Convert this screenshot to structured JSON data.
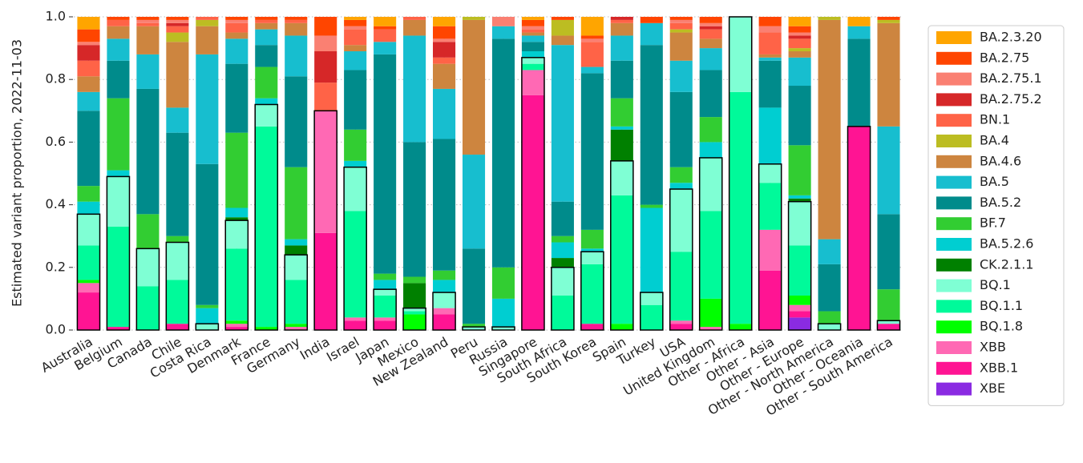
{
  "chart_data": {
    "type": "stacked_bar",
    "ylabel": "Estimated variant proportion, 2022-11-03",
    "categories": [
      "Australia",
      "Belgium",
      "Canada",
      "Chile",
      "Costa Rica",
      "Denmark",
      "France",
      "Germany",
      "India",
      "Israel",
      "Japan",
      "Mexico",
      "New Zealand",
      "Peru",
      "Russia",
      "Singapore",
      "South Africa",
      "South Korea",
      "Spain",
      "Turkey",
      "USA",
      "United Kingdom",
      "Other - Africa",
      "Other - Asia",
      "Other - Europe",
      "Other - North America",
      "Other - Oceania",
      "Other - South America"
    ],
    "ylim": [
      0,
      1
    ],
    "yticks": [
      {
        "value": 0,
        "label": "0.0"
      },
      0.2,
      0.4,
      0.6,
      0.8,
      {
        "value": 1,
        "label": "1.0"
      }
    ],
    "grid": true,
    "legend": "right",
    "series": [
      {
        "name": "XBE",
        "color": "#8a2be2",
        "values": [
          0,
          0,
          0,
          0,
          0,
          0,
          0,
          0,
          0,
          0,
          0,
          0,
          0,
          0,
          0,
          0,
          0,
          0,
          0,
          0,
          0,
          0,
          0,
          0,
          0.04,
          0,
          0,
          0
        ]
      },
      {
        "name": "XBB.1",
        "color": "#ff1493",
        "values": [
          0.12,
          0.01,
          0,
          0.02,
          0,
          0.01,
          0,
          0,
          0.31,
          0.03,
          0.03,
          0,
          0.05,
          0,
          0,
          0.75,
          0,
          0.02,
          0,
          0,
          0.02,
          0,
          0,
          0.19,
          0.02,
          0,
          0.65,
          0.02
        ]
      },
      {
        "name": "XBB",
        "color": "#ff69b4",
        "values": [
          0.03,
          0,
          0,
          0,
          0,
          0.01,
          0,
          0.01,
          0.39,
          0.01,
          0.01,
          0,
          0.02,
          0,
          0,
          0.08,
          0,
          0,
          0,
          0,
          0.01,
          0.01,
          0,
          0.13,
          0.02,
          0,
          0,
          0
        ]
      },
      {
        "name": "BQ.1.8",
        "color": "#00ff00",
        "values": [
          0.01,
          0,
          0,
          0,
          0,
          0.01,
          0.01,
          0.01,
          0,
          0,
          0,
          0.05,
          0,
          0,
          0,
          0,
          0,
          0,
          0.02,
          0,
          0,
          0.09,
          0.02,
          0,
          0.03,
          0,
          0,
          0
        ]
      },
      {
        "name": "BQ.1.1",
        "color": "#00fa9a",
        "values": [
          0.11,
          0.32,
          0.14,
          0.14,
          0,
          0.23,
          0.64,
          0.14,
          0,
          0.34,
          0.07,
          0.01,
          0,
          0,
          0,
          0.02,
          0.11,
          0.19,
          0.41,
          0.08,
          0.22,
          0.28,
          0.74,
          0.15,
          0.16,
          0,
          0,
          0
        ]
      },
      {
        "name": "BQ.1",
        "color": "#7fffd4",
        "values": [
          0.1,
          0.16,
          0.12,
          0.12,
          0.02,
          0.09,
          0.07,
          0.08,
          0,
          0.14,
          0.02,
          0.01,
          0.05,
          0.01,
          0.01,
          0.02,
          0.09,
          0.04,
          0.11,
          0.04,
          0.2,
          0.17,
          0.24,
          0.06,
          0.14,
          0.02,
          0,
          0.01
        ]
      },
      {
        "name": "CK.2.1.1",
        "color": "#008000",
        "values": [
          0,
          0,
          0,
          0,
          0,
          0.01,
          0,
          0.03,
          0,
          0,
          0,
          0.08,
          0,
          0,
          0,
          0,
          0.03,
          0,
          0.1,
          0,
          0,
          0,
          0,
          0,
          0.01,
          0,
          0,
          0
        ]
      },
      {
        "name": "BA.5.2.6",
        "color": "#00ced1",
        "values": [
          0.04,
          0.02,
          0,
          0,
          0.05,
          0.03,
          0.02,
          0.02,
          0,
          0.02,
          0.03,
          0,
          0.04,
          0,
          0.09,
          0.02,
          0.05,
          0.01,
          0.01,
          0.27,
          0.02,
          0.05,
          0,
          0.18,
          0.01,
          0,
          0,
          0
        ]
      },
      {
        "name": "BF.7",
        "color": "#32cd32",
        "values": [
          0.05,
          0.23,
          0.11,
          0.02,
          0.01,
          0.24,
          0.1,
          0.23,
          0,
          0.1,
          0.02,
          0.02,
          0.03,
          0.01,
          0.1,
          0,
          0.02,
          0.06,
          0.09,
          0.01,
          0.05,
          0.08,
          0,
          0,
          0.16,
          0.04,
          0,
          0.1
        ]
      },
      {
        "name": "BA.5.2",
        "color": "#008b8b",
        "values": [
          0.24,
          0.12,
          0.4,
          0.33,
          0.45,
          0.22,
          0.07,
          0.29,
          0,
          0.19,
          0.7,
          0.43,
          0.42,
          0.24,
          0.73,
          0.03,
          0.11,
          0.5,
          0.12,
          0.51,
          0.24,
          0.15,
          0,
          0.15,
          0.19,
          0.15,
          0.28,
          0.24
        ]
      },
      {
        "name": "BA.5",
        "color": "#17becf",
        "values": [
          0.06,
          0.07,
          0.11,
          0.08,
          0.35,
          0.08,
          0.05,
          0.13,
          0,
          0.06,
          0.04,
          0.34,
          0.16,
          0.3,
          0.04,
          0.02,
          0.5,
          0.02,
          0.08,
          0.07,
          0.1,
          0.07,
          0,
          0.01,
          0.09,
          0.08,
          0.04,
          0.28
        ]
      },
      {
        "name": "BA.4.6",
        "color": "#cd853f",
        "values": [
          0.05,
          0.04,
          0.09,
          0.21,
          0.09,
          0.02,
          0.02,
          0.04,
          0,
          0.02,
          0,
          0.05,
          0.08,
          0.43,
          0,
          0.01,
          0.03,
          0,
          0.04,
          0,
          0.09,
          0.03,
          0,
          0.01,
          0.02,
          0.7,
          0,
          0.33
        ]
      },
      {
        "name": "BA.4",
        "color": "#bcbd22",
        "values": [
          0,
          0,
          0,
          0.03,
          0.02,
          0,
          0,
          0,
          0,
          0,
          0,
          0,
          0,
          0.01,
          0,
          0,
          0.05,
          0,
          0,
          0,
          0.01,
          0,
          0,
          0,
          0.01,
          0.01,
          0,
          0.01
        ]
      },
      {
        "name": "BN.1",
        "color": "#ff6347",
        "values": [
          0.05,
          0.02,
          0.01,
          0.02,
          0.01,
          0.03,
          0.01,
          0.01,
          0.09,
          0.05,
          0.04,
          0.01,
          0.02,
          0,
          0,
          0.01,
          0,
          0.08,
          0.01,
          0,
          0.02,
          0.03,
          0,
          0.07,
          0.03,
          0,
          0,
          0
        ]
      },
      {
        "name": "BA.2.75.2",
        "color": "#d62728",
        "values": [
          0.05,
          0,
          0,
          0.01,
          0,
          0,
          0,
          0,
          0.1,
          0,
          0,
          0,
          0.05,
          0,
          0,
          0,
          0,
          0,
          0.01,
          0,
          0,
          0.01,
          0,
          0,
          0.01,
          0,
          0,
          0
        ]
      },
      {
        "name": "BA.2.75.1",
        "color": "#fa8072",
        "values": [
          0.01,
          0,
          0.01,
          0.01,
          0,
          0.01,
          0,
          0,
          0.05,
          0.01,
          0,
          0,
          0.01,
          0,
          0.03,
          0.01,
          0,
          0.01,
          0,
          0,
          0.01,
          0.01,
          0,
          0.02,
          0.01,
          0,
          0,
          0
        ]
      },
      {
        "name": "BA.2.75",
        "color": "#ff4500",
        "values": [
          0.04,
          0.01,
          0.01,
          0.01,
          0,
          0.01,
          0.01,
          0.01,
          0.06,
          0.02,
          0.01,
          0,
          0.04,
          0,
          0,
          0.02,
          0.01,
          0.01,
          0,
          0.02,
          0.01,
          0.02,
          0,
          0.03,
          0.02,
          0,
          0,
          0.01
        ]
      },
      {
        "name": "BA.2.3.20",
        "color": "#ffa500",
        "values": [
          0.04,
          0,
          0,
          0,
          0,
          0,
          0,
          0,
          0,
          0.01,
          0.03,
          0,
          0.03,
          0,
          0,
          0.01,
          0,
          0.06,
          0,
          0,
          0,
          0,
          0,
          0,
          0.03,
          0,
          0.03,
          0
        ]
      }
    ]
  }
}
